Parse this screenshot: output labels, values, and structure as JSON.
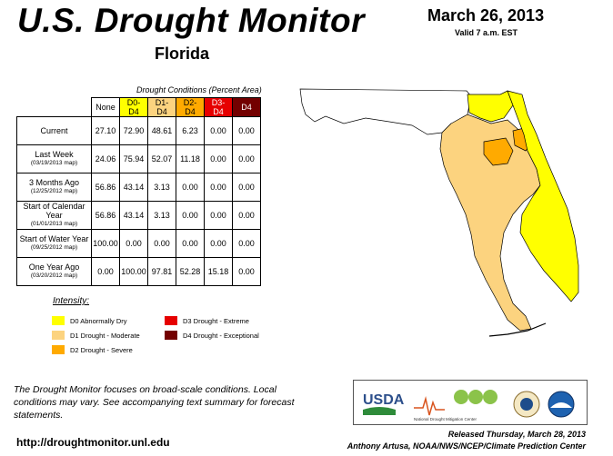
{
  "title": "U.S. Drought Monitor",
  "region": "Florida",
  "date": "March 26, 2013",
  "valid": "Valid 7 a.m. EST",
  "table": {
    "caption": "Drought Conditions (Percent Area)",
    "columns": [
      "None",
      "D0-D4",
      "D1-D4",
      "D2-D4",
      "D3-D4",
      "D4"
    ],
    "rows": [
      {
        "label": "Current",
        "sub": "",
        "values": [
          "27.10",
          "72.90",
          "48.61",
          "6.23",
          "0.00",
          "0.00"
        ]
      },
      {
        "label": "Last Week",
        "sub": "(03/19/2013 map)",
        "values": [
          "24.06",
          "75.94",
          "52.07",
          "11.18",
          "0.00",
          "0.00"
        ]
      },
      {
        "label": "3 Months Ago",
        "sub": "(12/25/2012 map)",
        "values": [
          "56.86",
          "43.14",
          "3.13",
          "0.00",
          "0.00",
          "0.00"
        ]
      },
      {
        "label": "Start of Calendar Year",
        "sub": "(01/01/2013 map)",
        "values": [
          "56.86",
          "43.14",
          "3.13",
          "0.00",
          "0.00",
          "0.00"
        ]
      },
      {
        "label": "Start of Water Year",
        "sub": "(09/25/2012 map)",
        "values": [
          "100.00",
          "0.00",
          "0.00",
          "0.00",
          "0.00",
          "0.00"
        ]
      },
      {
        "label": "One Year Ago",
        "sub": "(03/20/2012 map)",
        "values": [
          "0.00",
          "100.00",
          "97.81",
          "52.28",
          "15.18",
          "0.00"
        ]
      }
    ]
  },
  "legend": {
    "title": "Intensity:",
    "items": [
      {
        "label": "D0 Abnormally Dry",
        "color": "#ffff00"
      },
      {
        "label": "D1 Drought - Moderate",
        "color": "#fcd37f"
      },
      {
        "label": "D2 Drought - Severe",
        "color": "#ffaa00"
      },
      {
        "label": "D3 Drought - Extreme",
        "color": "#e60000"
      },
      {
        "label": "D4 Drought - Exceptional",
        "color": "#730000"
      }
    ]
  },
  "note": "The Drought Monitor focuses on broad-scale conditions. Local conditions may vary. See accompanying text summary for forecast statements.",
  "url": "http://droughtmonitor.unl.edu",
  "logos": {
    "usda": "USDA",
    "ndmc": "National Drought Mitigation Center"
  },
  "released": "Released Thursday, March 28, 2013",
  "author": "Anthony Artusa, NOAA/NWS/NCEP/Climate Prediction Center"
}
